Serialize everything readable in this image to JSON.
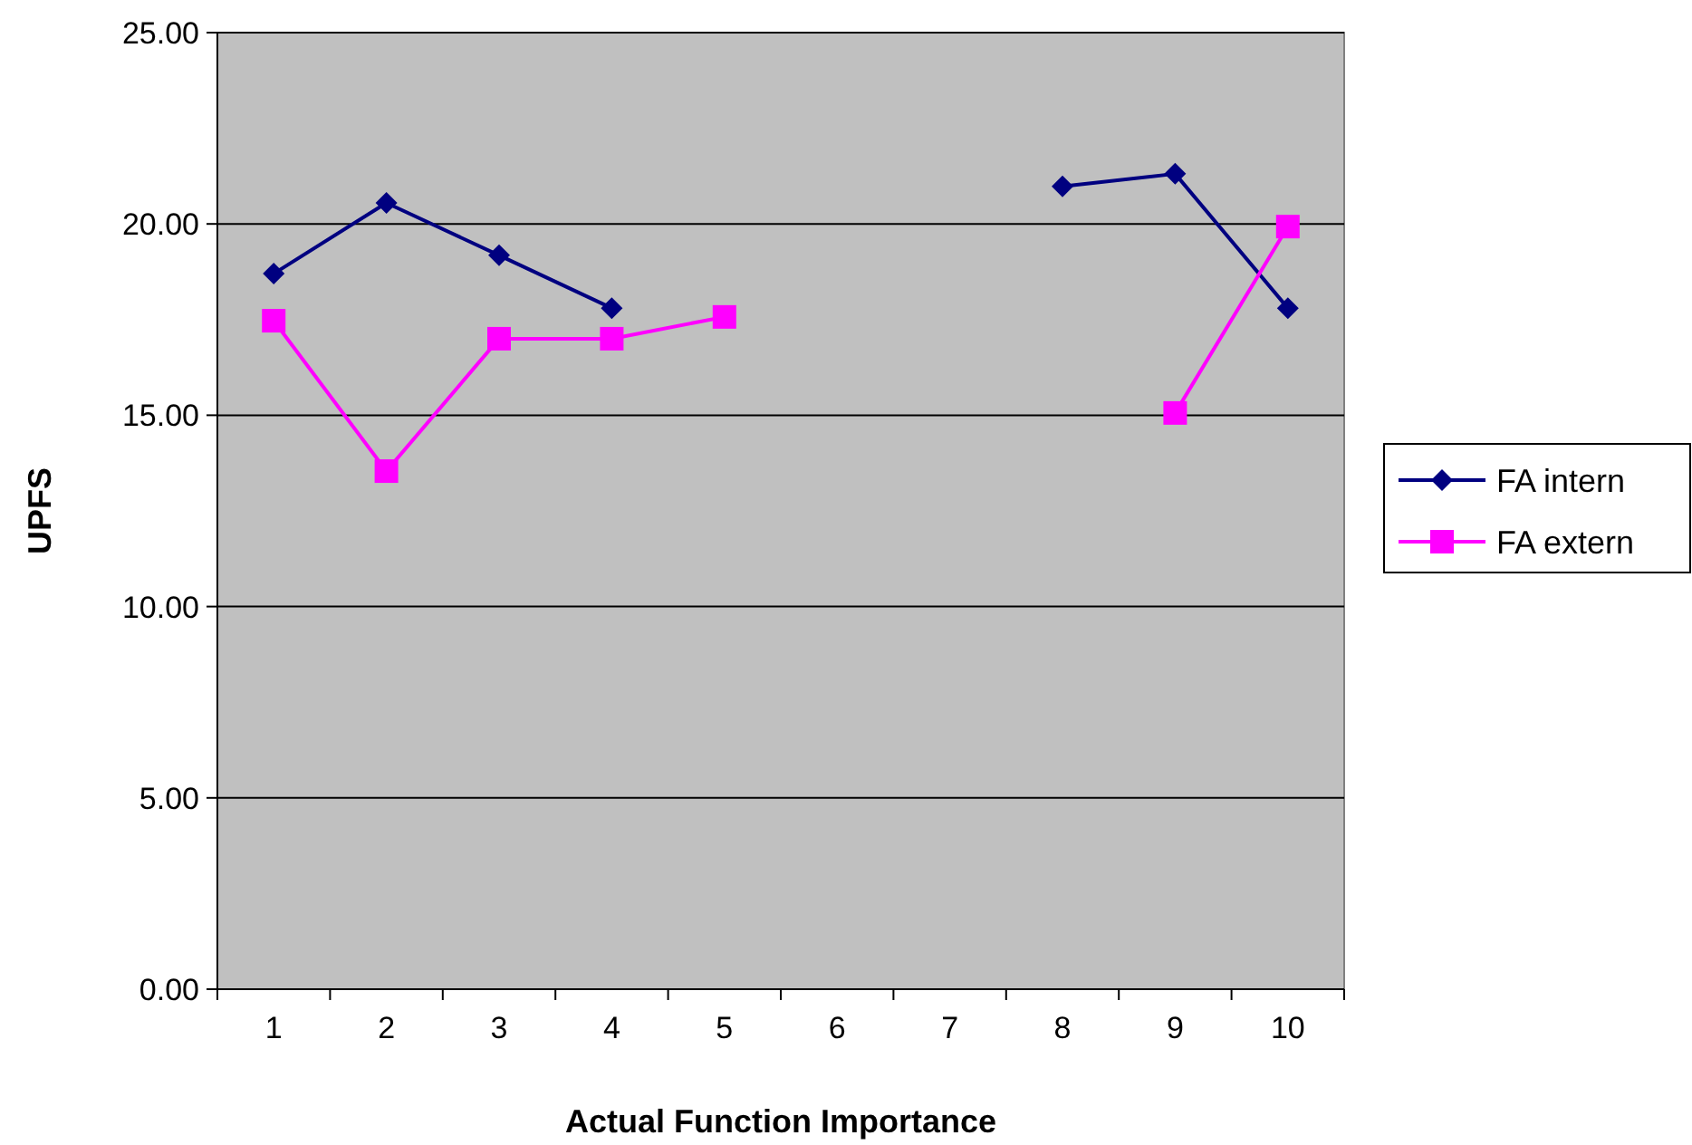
{
  "chart_data": {
    "type": "line",
    "xlabel": "Actual Function Importance",
    "ylabel": "UPFS",
    "categories": [
      "1",
      "2",
      "3",
      "4",
      "5",
      "6",
      "7",
      "8",
      "9",
      "10"
    ],
    "series": [
      {
        "name": "FA intern",
        "color": "#000080",
        "marker": "diamond",
        "values": [
          18.7,
          20.55,
          19.18,
          17.8,
          null,
          null,
          null,
          20.98,
          21.31,
          17.8
        ]
      },
      {
        "name": "FA extern",
        "color": "#ff00ff",
        "marker": "square",
        "values": [
          17.47,
          13.54,
          17.0,
          17.0,
          17.57,
          null,
          null,
          null,
          15.06,
          19.93
        ]
      }
    ],
    "ylim": [
      0,
      25
    ],
    "yticks": [
      {
        "value": 0,
        "label": "0.00"
      },
      {
        "value": 5,
        "label": "5.00"
      },
      {
        "value": 10,
        "label": "10.00"
      },
      {
        "value": 15,
        "label": "15.00"
      },
      {
        "value": 20,
        "label": "20.00"
      },
      {
        "value": 25,
        "label": "25.00"
      }
    ],
    "grid": "y",
    "legend": "right",
    "line_style": "solid"
  }
}
